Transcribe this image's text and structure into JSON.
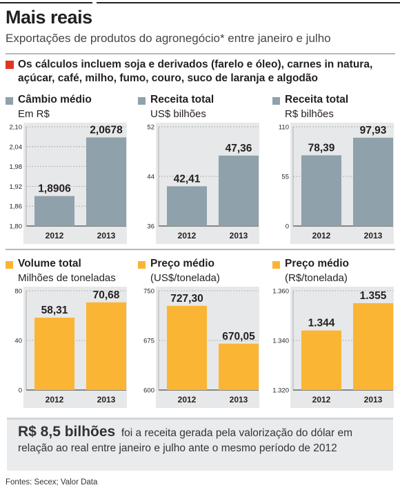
{
  "header": {
    "title": "Mais reais",
    "subtitle": "Exportações de produtos do agronegócio* entre janeiro e julho"
  },
  "note": "Os cálculos incluem soja e derivados (farelo e óleo), carnes in natura, açúcar, café, milho, fumo, couro, suco de laranja e algodão",
  "callout": {
    "highlight": "R$ 8,5 bilhões",
    "text": "foi a receita gerada pela valorização do dólar em relação ao real entre janeiro e julho ante o mesmo período de 2012"
  },
  "sources": "Fontes: Secex; Valor Data",
  "colors": {
    "gray_bar": "#8fa1ab",
    "orange_bar": "#fbb534",
    "panel_bg": "#e7e8e9",
    "accent": "#e0371f"
  },
  "chart_data": [
    {
      "type": "bar",
      "title": "Câmbio médio",
      "unit": "Em R$",
      "color": "gray",
      "categories": [
        "2012",
        "2013"
      ],
      "values": [
        1.8906,
        2.0678
      ],
      "labels": [
        "1,8906",
        "2,0678"
      ],
      "ylim": [
        1.8,
        2.1
      ],
      "yticks": [
        1.8,
        1.86,
        1.92,
        1.98,
        2.04,
        2.1
      ],
      "ytick_labels": [
        "1,80",
        "1,86",
        "1,92",
        "1,98",
        "2,04",
        "2,10"
      ]
    },
    {
      "type": "bar",
      "title": "Receita total",
      "unit": "US$ bilhões",
      "color": "gray",
      "categories": [
        "2012",
        "2013"
      ],
      "values": [
        42.41,
        47.36
      ],
      "labels": [
        "42,41",
        "47,36"
      ],
      "ylim": [
        36,
        52
      ],
      "yticks": [
        36,
        44,
        52
      ],
      "ytick_labels": [
        "36",
        "44",
        "52"
      ]
    },
    {
      "type": "bar",
      "title": "Receita total",
      "unit": "R$ bilhões",
      "color": "gray",
      "categories": [
        "2012",
        "2013"
      ],
      "values": [
        78.39,
        97.93
      ],
      "labels": [
        "78,39",
        "97,93"
      ],
      "ylim": [
        0,
        110
      ],
      "yticks": [
        0,
        55,
        110
      ],
      "ytick_labels": [
        "0",
        "55",
        "110"
      ]
    },
    {
      "type": "bar",
      "title": "Volume total",
      "unit": "Milhões de toneladas",
      "color": "orange",
      "categories": [
        "2012",
        "2013"
      ],
      "values": [
        58.31,
        70.68
      ],
      "labels": [
        "58,31",
        "70,68"
      ],
      "ylim": [
        0,
        80
      ],
      "yticks": [
        0,
        40,
        80
      ],
      "ytick_labels": [
        "0",
        "40",
        "80"
      ]
    },
    {
      "type": "bar",
      "title": "Preço médio",
      "unit": "(US$/tonelada)",
      "color": "orange",
      "categories": [
        "2012",
        "2013"
      ],
      "values": [
        727.3,
        670.05
      ],
      "labels": [
        "727,30",
        "670,05"
      ],
      "ylim": [
        600,
        750
      ],
      "yticks": [
        600,
        675,
        750
      ],
      "ytick_labels": [
        "600",
        "675",
        "750"
      ]
    },
    {
      "type": "bar",
      "title": "Preço médio",
      "unit": "(R$/tonelada)",
      "color": "orange",
      "categories": [
        "2012",
        "2013"
      ],
      "values": [
        1344,
        1355
      ],
      "labels": [
        "1.344",
        "1.355"
      ],
      "ylim": [
        1320,
        1360
      ],
      "yticks": [
        1320,
        1340,
        1360
      ],
      "ytick_labels": [
        "1.320",
        "1.340",
        "1.360"
      ]
    }
  ]
}
